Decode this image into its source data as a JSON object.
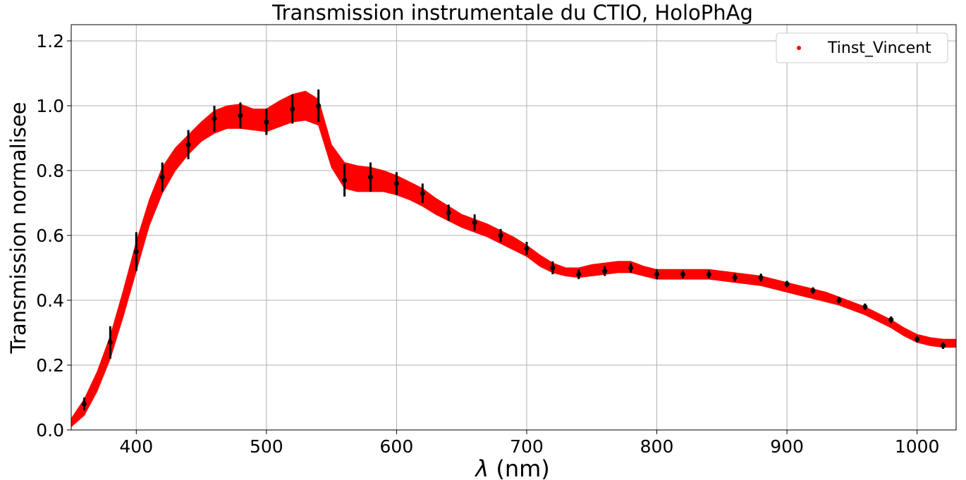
{
  "chart_data": {
    "type": "line",
    "title": "Transmission instrumentale du CTIO, HoloPhAg",
    "xlabel_symbol": "λ",
    "xlabel_unit": " (nm)",
    "ylabel": "Transmission normalisee",
    "xlim": [
      350,
      1030
    ],
    "ylim": [
      0,
      1.25
    ],
    "grid": true,
    "legend_position": "top-right",
    "x_ticks": [
      400,
      500,
      600,
      700,
      800,
      900,
      1000
    ],
    "y_ticks": [
      0.0,
      0.2,
      0.4,
      0.6,
      0.8,
      1.0,
      1.2
    ],
    "x_tick_labels": [
      "400",
      "500",
      "600",
      "700",
      "800",
      "900",
      "1000"
    ],
    "y_tick_labels": [
      "0.0",
      "0.2",
      "0.4",
      "0.6",
      "0.8",
      "1.0",
      "1.2"
    ],
    "band": {
      "color": "#ff0000",
      "x": [
        350,
        360,
        370,
        380,
        390,
        400,
        410,
        420,
        430,
        440,
        450,
        460,
        470,
        480,
        490,
        500,
        510,
        520,
        530,
        540,
        550,
        560,
        570,
        580,
        590,
        600,
        610,
        620,
        630,
        640,
        650,
        660,
        670,
        680,
        690,
        700,
        710,
        720,
        730,
        740,
        750,
        760,
        770,
        780,
        790,
        800,
        810,
        820,
        830,
        840,
        850,
        860,
        870,
        880,
        890,
        900,
        910,
        920,
        930,
        940,
        950,
        960,
        970,
        980,
        990,
        1000,
        1010,
        1020,
        1030
      ],
      "upper": [
        0.035,
        0.095,
        0.18,
        0.29,
        0.43,
        0.58,
        0.71,
        0.81,
        0.87,
        0.91,
        0.95,
        0.985,
        1.0,
        1.005,
        0.99,
        0.99,
        1.015,
        1.035,
        1.045,
        1.02,
        0.88,
        0.825,
        0.815,
        0.81,
        0.8,
        0.785,
        0.765,
        0.745,
        0.715,
        0.69,
        0.665,
        0.65,
        0.635,
        0.615,
        0.595,
        0.57,
        0.54,
        0.515,
        0.5,
        0.5,
        0.51,
        0.515,
        0.52,
        0.52,
        0.505,
        0.495,
        0.495,
        0.495,
        0.495,
        0.495,
        0.49,
        0.485,
        0.48,
        0.475,
        0.465,
        0.455,
        0.445,
        0.435,
        0.425,
        0.41,
        0.395,
        0.38,
        0.36,
        0.34,
        0.315,
        0.295,
        0.285,
        0.28,
        0.28
      ],
      "lower": [
        0.01,
        0.045,
        0.12,
        0.22,
        0.35,
        0.49,
        0.63,
        0.73,
        0.8,
        0.85,
        0.89,
        0.915,
        0.93,
        0.93,
        0.925,
        0.92,
        0.935,
        0.95,
        0.955,
        0.94,
        0.81,
        0.745,
        0.735,
        0.735,
        0.735,
        0.725,
        0.71,
        0.69,
        0.665,
        0.645,
        0.625,
        0.61,
        0.595,
        0.575,
        0.555,
        0.535,
        0.505,
        0.485,
        0.475,
        0.47,
        0.475,
        0.48,
        0.485,
        0.485,
        0.475,
        0.465,
        0.465,
        0.465,
        0.465,
        0.465,
        0.46,
        0.455,
        0.45,
        0.445,
        0.435,
        0.425,
        0.415,
        0.405,
        0.395,
        0.385,
        0.37,
        0.355,
        0.335,
        0.315,
        0.29,
        0.27,
        0.26,
        0.255,
        0.255
      ]
    },
    "series": [
      {
        "name": "Tinst_Vincent",
        "marker_color": "#ff0000",
        "x": [
          360,
          380,
          400,
          420,
          440,
          460,
          480,
          500,
          520,
          540,
          560,
          580,
          600,
          620,
          640,
          660,
          680,
          700,
          720,
          740,
          760,
          780,
          800,
          820,
          840,
          860,
          880,
          900,
          920,
          940,
          960,
          980,
          1000,
          1020
        ],
        "y": [
          0.08,
          0.27,
          0.55,
          0.78,
          0.88,
          0.96,
          0.97,
          0.95,
          0.99,
          1.0,
          0.77,
          0.78,
          0.76,
          0.73,
          0.67,
          0.64,
          0.6,
          0.56,
          0.5,
          0.48,
          0.49,
          0.5,
          0.48,
          0.48,
          0.48,
          0.47,
          0.47,
          0.45,
          0.43,
          0.4,
          0.38,
          0.34,
          0.28,
          0.26
        ],
        "err": [
          0.02,
          0.05,
          0.06,
          0.045,
          0.045,
          0.04,
          0.04,
          0.04,
          0.045,
          0.05,
          0.05,
          0.045,
          0.035,
          0.03,
          0.025,
          0.025,
          0.02,
          0.02,
          0.02,
          0.015,
          0.015,
          0.015,
          0.015,
          0.012,
          0.012,
          0.012,
          0.012,
          0.01,
          0.01,
          0.01,
          0.01,
          0.01,
          0.01,
          0.01
        ]
      }
    ],
    "errorbar_color": "#000000"
  }
}
